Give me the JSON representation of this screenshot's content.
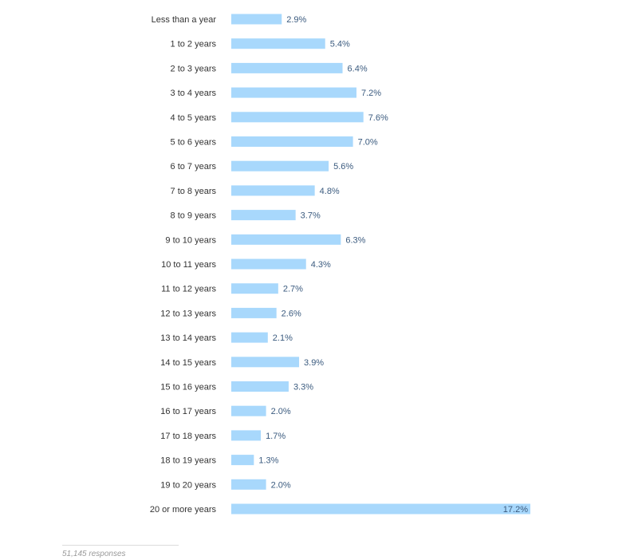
{
  "chart_data": {
    "type": "bar",
    "orientation": "horizontal",
    "categories": [
      "Less than a year",
      "1 to 2 years",
      "2 to 3 years",
      "3 to 4 years",
      "4 to 5 years",
      "5 to 6 years",
      "6 to 7 years",
      "7 to 8 years",
      "8 to 9 years",
      "9 to 10 years",
      "10 to 11 years",
      "11 to 12 years",
      "12 to 13 years",
      "13 to 14 years",
      "14 to 15 years",
      "15 to 16 years",
      "16 to 17 years",
      "17 to 18 years",
      "18 to 19 years",
      "19 to 20 years",
      "20 or more years"
    ],
    "values": [
      2.9,
      5.4,
      6.4,
      7.2,
      7.6,
      7.0,
      5.6,
      4.8,
      3.7,
      6.3,
      4.3,
      2.7,
      2.6,
      2.1,
      3.9,
      3.3,
      2.0,
      1.7,
      1.3,
      2.0,
      17.2
    ],
    "value_labels": [
      "2.9%",
      "5.4%",
      "6.4%",
      "7.2%",
      "7.6%",
      "7.0%",
      "5.6%",
      "4.8%",
      "3.7%",
      "6.3%",
      "4.3%",
      "2.7%",
      "2.6%",
      "2.1%",
      "3.9%",
      "3.3%",
      "2.0%",
      "1.7%",
      "1.3%",
      "2.0%",
      "17.2%"
    ],
    "unit": "%",
    "xlim": [
      0,
      17.2
    ],
    "grid": false,
    "title": "",
    "xlabel": "",
    "ylabel": ""
  },
  "footer": {
    "responses": "51,145 responses"
  },
  "colors": {
    "bar": "#a8d8fc",
    "value_label": "#3b5b7f",
    "category_label": "#333333",
    "footnote": "#999999"
  }
}
